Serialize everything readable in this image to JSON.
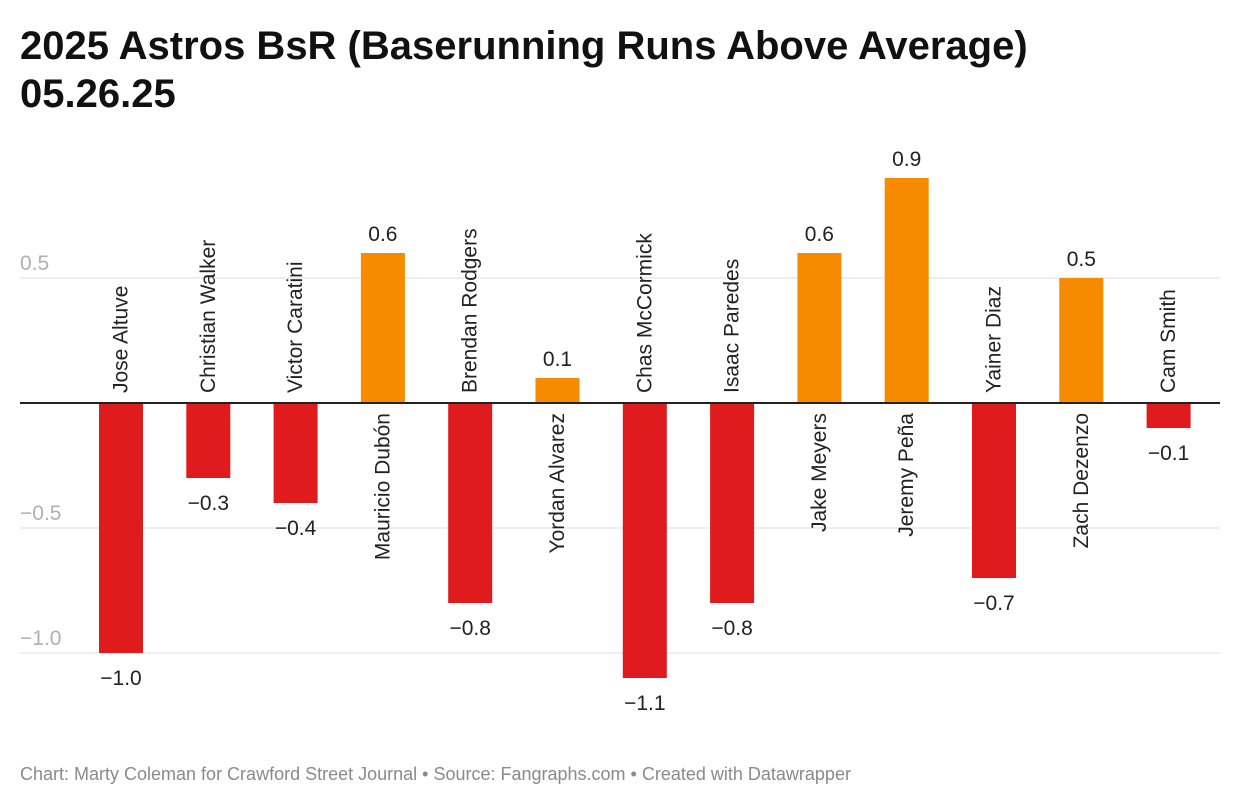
{
  "title_line1": "2025 Astros BsR (Baserunning Runs Above Average)",
  "title_line2": "05.26.25",
  "footer": "Chart: Marty Coleman for Crawford Street Journal • Source: Fangraphs.com • Created with Datawrapper",
  "colors": {
    "positive": "#f68b00",
    "negative": "#e01b1e",
    "grid": "#dddddd",
    "tick": "#b0b0b0",
    "baseline": "#222222",
    "text": "#222222"
  },
  "chart_data": {
    "type": "bar",
    "title": "2025 Astros BsR (Baserunning Runs Above Average) 05.26.25",
    "categories": [
      "Jose Altuve",
      "Christian Walker",
      "Victor Caratini",
      "Mauricio Dubón",
      "Brendan Rodgers",
      "Yordan Alvarez",
      "Chas McCormick",
      "Isaac Paredes",
      "Jake Meyers",
      "Jeremy Peña",
      "Yainer Diaz",
      "Zach Dezenzo",
      "Cam Smith"
    ],
    "values": [
      -1.0,
      -0.3,
      -0.4,
      0.6,
      -0.8,
      0.1,
      -1.1,
      -0.8,
      0.6,
      0.9,
      -0.7,
      0.5,
      -0.1
    ],
    "value_labels": [
      "−1.0",
      "−0.3",
      "−0.4",
      "0.6",
      "−0.8",
      "0.1",
      "−1.1",
      "−0.8",
      "0.6",
      "0.9",
      "−0.7",
      "0.5",
      "−0.1"
    ],
    "yticks": [
      0.5,
      -0.5,
      -1.0
    ],
    "ytick_labels": [
      "0.5",
      "−0.5",
      "−1.0"
    ],
    "ylim": [
      -1.1,
      0.9
    ],
    "grid": true,
    "xlabel": "",
    "ylabel": ""
  }
}
